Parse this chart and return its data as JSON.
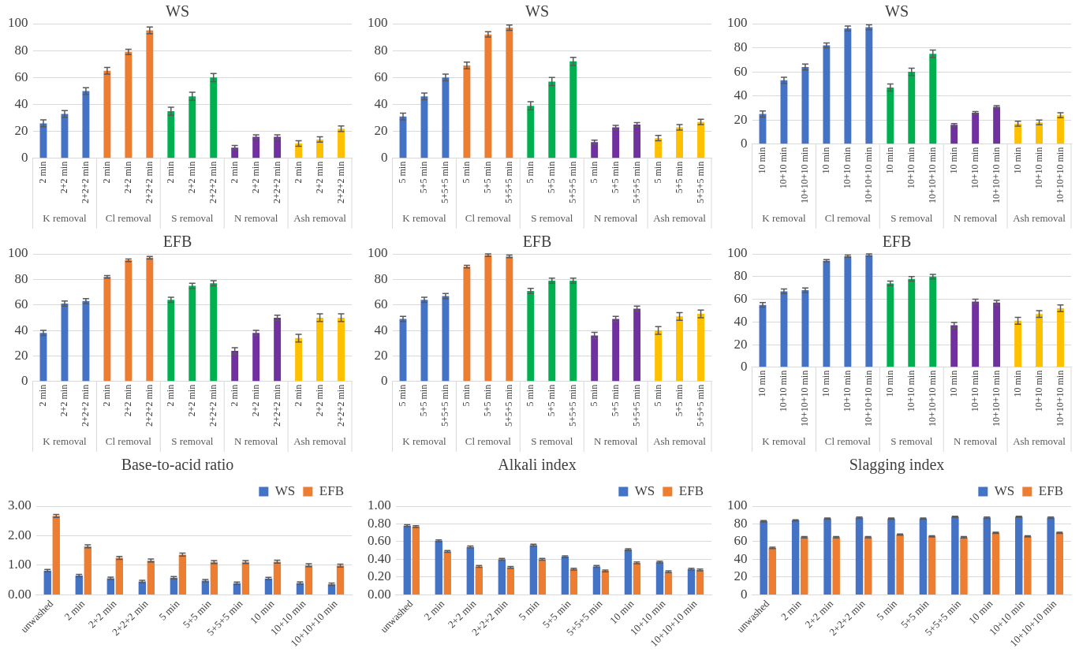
{
  "chart_data": [
    {
      "type": "bar",
      "title": "WS",
      "categories": [
        "2 min",
        "2+2 min",
        "2+2+2 min",
        "2 min",
        "2+2 min",
        "2+2+2 min",
        "2 min",
        "2+2 min",
        "2+2+2 min",
        "2 min",
        "2+2 min",
        "2+2+2 min",
        "2 min",
        "2+2 min",
        "2+2+2 min"
      ],
      "values": [
        26,
        33,
        50,
        65,
        79,
        95,
        35,
        46,
        60,
        8,
        16,
        16,
        11,
        14,
        22
      ],
      "errors": [
        2.5,
        2.5,
        2.5,
        2.5,
        2,
        2.5,
        3,
        3,
        3,
        1.5,
        1.5,
        1.5,
        2,
        2,
        2
      ],
      "colors": [
        "#4472c4",
        "#4472c4",
        "#4472c4",
        "#ed7d31",
        "#ed7d31",
        "#ed7d31",
        "#00b050",
        "#00b050",
        "#00b050",
        "#7030a0",
        "#7030a0",
        "#7030a0",
        "#ffc000",
        "#ffc000",
        "#ffc000"
      ],
      "annotations": [
        "K removal",
        "Cl removal",
        "S removal",
        "N removal",
        "Ash removal"
      ],
      "ylim": [
        0,
        100
      ],
      "yticks": [
        0,
        20,
        40,
        60,
        80,
        100
      ],
      "grid": "y"
    },
    {
      "type": "bar",
      "title": "WS",
      "categories": [
        "5 min",
        "5+5 min",
        "5+5+5 min",
        "5 min",
        "5+5 min",
        "5+5+5 min",
        "5 min",
        "5+5 min",
        "5+5+5 min",
        "5 min",
        "5+5 min",
        "5+5+5 min",
        "5 min",
        "5+5 min",
        "5+5+5 min"
      ],
      "values": [
        31,
        46,
        60,
        69,
        92,
        97,
        39,
        57,
        72,
        12,
        23,
        25,
        15,
        23,
        27
      ],
      "errors": [
        2.5,
        2.5,
        2.5,
        2.5,
        2,
        2,
        3,
        3,
        3,
        1.5,
        1.5,
        1.5,
        2,
        2,
        2
      ],
      "colors": [
        "#4472c4",
        "#4472c4",
        "#4472c4",
        "#ed7d31",
        "#ed7d31",
        "#ed7d31",
        "#00b050",
        "#00b050",
        "#00b050",
        "#7030a0",
        "#7030a0",
        "#7030a0",
        "#ffc000",
        "#ffc000",
        "#ffc000"
      ],
      "annotations": [
        "K removal",
        "Cl removal",
        "S removal",
        "N removal",
        "Ash removal"
      ],
      "ylim": [
        0,
        100
      ],
      "yticks": [
        0,
        20,
        40,
        60,
        80,
        100
      ],
      "grid": "y"
    },
    {
      "type": "bar",
      "title": "WS",
      "categories": [
        "10 min",
        "10+10 min",
        "10+10+10 min",
        "10 min",
        "10+10 min",
        "10+10+10 min",
        "10 min",
        "10+10 min",
        "10+10+10 min",
        "10 min",
        "10+10 min",
        "10+10+10 min",
        "10 min",
        "10+10 min",
        "10+10+10 min"
      ],
      "values": [
        25,
        53,
        64,
        82,
        96,
        97,
        47,
        60,
        75,
        16,
        26,
        31,
        17,
        18,
        24
      ],
      "errors": [
        2.5,
        2.5,
        2.5,
        2,
        2,
        2,
        3,
        3,
        3,
        1,
        1,
        1,
        2,
        2,
        2
      ],
      "colors": [
        "#4472c4",
        "#4472c4",
        "#4472c4",
        "#4472c4",
        "#4472c4",
        "#4472c4",
        "#00b050",
        "#00b050",
        "#00b050",
        "#7030a0",
        "#7030a0",
        "#7030a0",
        "#ffc000",
        "#ffc000",
        "#ffc000"
      ],
      "annotations": [
        "K removal",
        "Cl removal",
        "S removal",
        "N removal",
        "Ash removal"
      ],
      "ylim": [
        0,
        100
      ],
      "yticks": [
        0,
        20,
        40,
        60,
        80,
        100
      ],
      "grid": "y"
    },
    {
      "type": "bar",
      "title": "EFB",
      "categories": [
        "2 min",
        "2+2 min",
        "2+2+2 min",
        "2 min",
        "2+2 min",
        "2+2+2 min",
        "2 min",
        "2+2 min",
        "2+2+2 min",
        "2 min",
        "2+2 min",
        "2+2+2 min",
        "2 min",
        "2+2 min",
        "2+2+2 min"
      ],
      "values": [
        38,
        61,
        63,
        82,
        95,
        97,
        64,
        75,
        77,
        24,
        38,
        50,
        34,
        50,
        50
      ],
      "errors": [
        2,
        2,
        2,
        1,
        1,
        1,
        2,
        2,
        2,
        2.5,
        2,
        2,
        3,
        3,
        3
      ],
      "colors": [
        "#4472c4",
        "#4472c4",
        "#4472c4",
        "#ed7d31",
        "#ed7d31",
        "#ed7d31",
        "#00b050",
        "#00b050",
        "#00b050",
        "#7030a0",
        "#7030a0",
        "#7030a0",
        "#ffc000",
        "#ffc000",
        "#ffc000"
      ],
      "annotations": [
        "K removal",
        "Cl removal",
        "S removal",
        "N removal",
        "Ash removal"
      ],
      "ylim": [
        0,
        100
      ],
      "yticks": [
        0,
        20,
        40,
        60,
        80,
        100
      ],
      "grid": "y"
    },
    {
      "type": "bar",
      "title": "EFB",
      "categories": [
        "5 min",
        "5+5 min",
        "5+5+5 min",
        "5 min",
        "5+5 min",
        "5+5+5 min",
        "5 min",
        "5+5 min",
        "5+5+5 min",
        "5 min",
        "5+5 min",
        "5+5+5 min",
        "5 min",
        "5+5 min",
        "5+5+5 min"
      ],
      "values": [
        49,
        64,
        67,
        90,
        99,
        98,
        71,
        79,
        79,
        36,
        49,
        57,
        40,
        51,
        53
      ],
      "errors": [
        2,
        2,
        2,
        1,
        1,
        1,
        2,
        2,
        2,
        2.5,
        2,
        2,
        3,
        3,
        3
      ],
      "colors": [
        "#4472c4",
        "#4472c4",
        "#4472c4",
        "#ed7d31",
        "#ed7d31",
        "#ed7d31",
        "#00b050",
        "#00b050",
        "#00b050",
        "#7030a0",
        "#7030a0",
        "#7030a0",
        "#ffc000",
        "#ffc000",
        "#ffc000"
      ],
      "annotations": [
        "K removal",
        "Cl removal",
        "S removal",
        "N removal",
        "Ash removal"
      ],
      "ylim": [
        0,
        100
      ],
      "yticks": [
        0,
        20,
        40,
        60,
        80,
        100
      ],
      "grid": "y"
    },
    {
      "type": "bar",
      "title": "EFB",
      "categories": [
        "10 min",
        "10+10 min",
        "10+10+10 min",
        "10 min",
        "10+10 min",
        "10+10+10 min",
        "10 min",
        "10+10 min",
        "10+10+10 min",
        "10 min",
        "10+10 min",
        "10+10+10 min",
        "10 min",
        "10+10 min",
        "10+10+10 min"
      ],
      "values": [
        55,
        67,
        68,
        94,
        98,
        99,
        74,
        78,
        80,
        37,
        58,
        57,
        41,
        47,
        52
      ],
      "errors": [
        2,
        2,
        2,
        1,
        1,
        1,
        2,
        2,
        2,
        2.5,
        2,
        2,
        3,
        3,
        3
      ],
      "colors": [
        "#4472c4",
        "#4472c4",
        "#4472c4",
        "#4472c4",
        "#4472c4",
        "#4472c4",
        "#00b050",
        "#00b050",
        "#00b050",
        "#7030a0",
        "#7030a0",
        "#7030a0",
        "#ffc000",
        "#ffc000",
        "#ffc000"
      ],
      "annotations": [
        "K removal",
        "Cl removal",
        "S removal",
        "N removal",
        "Ash removal"
      ],
      "ylim": [
        0,
        100
      ],
      "yticks": [
        0,
        20,
        40,
        60,
        80,
        100
      ],
      "grid": "y"
    },
    {
      "type": "bar",
      "title": "Base-to-acid ratio",
      "categories": [
        "unwashed",
        "2 min",
        "2+2 min",
        "2+2+2 min",
        "5 min",
        "5+5 min",
        "5+5+5 min",
        "10 min",
        "10+10 min",
        "10+10+10 min"
      ],
      "series": [
        {
          "name": "WS",
          "color": "#4472c4",
          "values": [
            0.82,
            0.65,
            0.56,
            0.45,
            0.58,
            0.48,
            0.39,
            0.55,
            0.4,
            0.36
          ],
          "errors": [
            0.04,
            0.04,
            0.04,
            0.04,
            0.04,
            0.04,
            0.04,
            0.04,
            0.04,
            0.04
          ]
        },
        {
          "name": "EFB",
          "color": "#ed7d31",
          "values": [
            2.67,
            1.64,
            1.25,
            1.16,
            1.36,
            1.11,
            1.11,
            1.12,
            1.0,
            0.99
          ],
          "errors": [
            0.05,
            0.05,
            0.05,
            0.05,
            0.05,
            0.05,
            0.05,
            0.05,
            0.05,
            0.05
          ]
        }
      ],
      "ylim": [
        0,
        3
      ],
      "yticks": [
        {
          "value": 0,
          "label": "0.00"
        },
        {
          "value": 1,
          "label": "1.00"
        },
        {
          "value": 2,
          "label": "2.00"
        },
        {
          "value": 3,
          "label": "3.00"
        }
      ],
      "grid": "y",
      "legend": "top right"
    },
    {
      "type": "bar",
      "title": "Alkali index",
      "categories": [
        "unwashed",
        "2 min",
        "2+2 min",
        "2+2+2 min",
        "5 min",
        "5+5 min",
        "5+5+5 min",
        "10 min",
        "10+10 min",
        "10+10+10 min"
      ],
      "series": [
        {
          "name": "WS",
          "color": "#4472c4",
          "values": [
            0.78,
            0.61,
            0.54,
            0.4,
            0.56,
            0.43,
            0.32,
            0.51,
            0.37,
            0.29
          ],
          "errors": [
            0.01,
            0.01,
            0.01,
            0.01,
            0.01,
            0.01,
            0.01,
            0.01,
            0.01,
            0.01
          ]
        },
        {
          "name": "EFB",
          "color": "#ed7d31",
          "values": [
            0.77,
            0.49,
            0.32,
            0.31,
            0.4,
            0.29,
            0.27,
            0.36,
            0.26,
            0.28
          ],
          "errors": [
            0.01,
            0.01,
            0.01,
            0.01,
            0.01,
            0.01,
            0.01,
            0.01,
            0.01,
            0.01
          ]
        }
      ],
      "ylim": [
        0,
        1
      ],
      "yticks": [
        {
          "value": 0,
          "label": "0.00"
        },
        {
          "value": 0.2,
          "label": "0.20"
        },
        {
          "value": 0.4,
          "label": "0.40"
        },
        {
          "value": 0.6,
          "label": "0.60"
        },
        {
          "value": 0.8,
          "label": "0.80"
        },
        {
          "value": 1,
          "label": "1.00"
        }
      ],
      "grid": "y",
      "legend": "top right"
    },
    {
      "type": "bar",
      "title": "Slagging index",
      "categories": [
        "unwashed",
        "2 min",
        "2+2 min",
        "2+2+2 min",
        "5 min",
        "5+5 min",
        "5+5+5 min",
        "10 min",
        "10+10 min",
        "10+10+10 min"
      ],
      "series": [
        {
          "name": "WS",
          "color": "#4472c4",
          "values": [
            83,
            84,
            86,
            87,
            86,
            86,
            88,
            87,
            88,
            87
          ],
          "errors": [
            0.7,
            0.7,
            0.7,
            0.7,
            0.7,
            0.7,
            0.7,
            0.7,
            0.7,
            0.7
          ]
        },
        {
          "name": "EFB",
          "color": "#ed7d31",
          "values": [
            53,
            65,
            65,
            65,
            68,
            66,
            65,
            70,
            66,
            70
          ],
          "errors": [
            0.7,
            0.7,
            0.7,
            0.7,
            0.7,
            0.7,
            0.7,
            0.7,
            0.7,
            0.7
          ]
        }
      ],
      "ylim": [
        0,
        100
      ],
      "yticks": [
        0,
        20,
        40,
        60,
        80,
        100
      ],
      "grid": "y",
      "legend": "top right"
    }
  ]
}
